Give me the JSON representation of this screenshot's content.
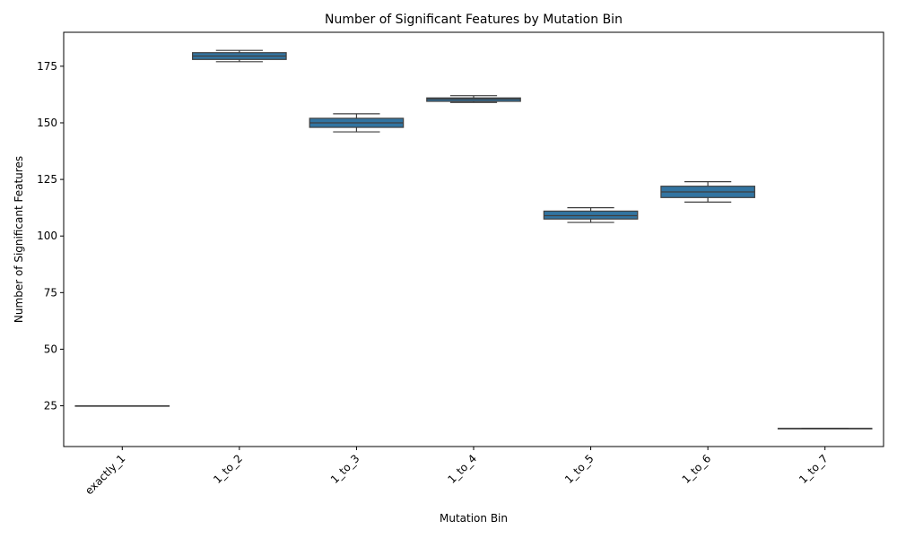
{
  "chart_data": {
    "type": "box",
    "title": "Number of Significant Features by Mutation Bin",
    "xlabel": "Mutation Bin",
    "ylabel": "Number of Significant Features",
    "ylim": [
      7,
      190
    ],
    "yticks": [
      25,
      50,
      75,
      100,
      125,
      150,
      175
    ],
    "categories": [
      "exactly_1",
      "1_to_2",
      "1_to_3",
      "1_to_4",
      "1_to_5",
      "1_to_6",
      "1_to_7"
    ],
    "boxes": [
      {
        "min": 25,
        "q1": 25,
        "median": 25,
        "q3": 25,
        "max": 25
      },
      {
        "min": 177,
        "q1": 178,
        "median": 179.5,
        "q3": 181,
        "max": 182
      },
      {
        "min": 146,
        "q1": 148,
        "median": 150,
        "q3": 152,
        "max": 154
      },
      {
        "min": 159,
        "q1": 159.5,
        "median": 160.5,
        "q3": 161,
        "max": 162
      },
      {
        "min": 106,
        "q1": 107.5,
        "median": 109,
        "q3": 111,
        "max": 112.5
      },
      {
        "min": 115,
        "q1": 117,
        "median": 119.5,
        "q3": 122,
        "max": 124
      },
      {
        "min": 15,
        "q1": 15,
        "median": 15,
        "q3": 15,
        "max": 15
      }
    ],
    "box_color": "#3274a1",
    "line_color": "#3f3f3f",
    "grid": false,
    "legend": "none"
  }
}
